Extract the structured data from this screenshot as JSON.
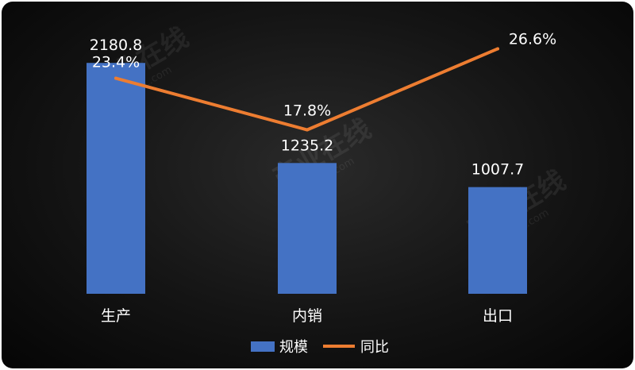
{
  "chart_data": {
    "type": "bar+line",
    "categories": [
      "生产",
      "内销",
      "出口"
    ],
    "series": [
      {
        "name": "规模",
        "type": "bar",
        "values": [
          2180.8,
          1235.2,
          1007.7
        ],
        "labels": [
          "2180.8",
          "1235.2",
          "1007.7"
        ],
        "color": "#4472C4"
      },
      {
        "name": "同比",
        "type": "line",
        "values": [
          23.4,
          17.8,
          26.6
        ],
        "labels": [
          "23.4%",
          "17.8%",
          "26.6%"
        ],
        "color": "#ED7D31"
      }
    ],
    "bar_ylim": [
      0,
      2400
    ],
    "line_ylim": [
      0,
      30
    ],
    "legend_position": "bottom-center",
    "grid": false
  },
  "watermark": {
    "text": "产业在线",
    "subtext": "ChinaIOL.com"
  },
  "colors": {
    "background": "#141414",
    "bar": "#4472C4",
    "line": "#ED7D31",
    "text": "#FFFFFF"
  }
}
